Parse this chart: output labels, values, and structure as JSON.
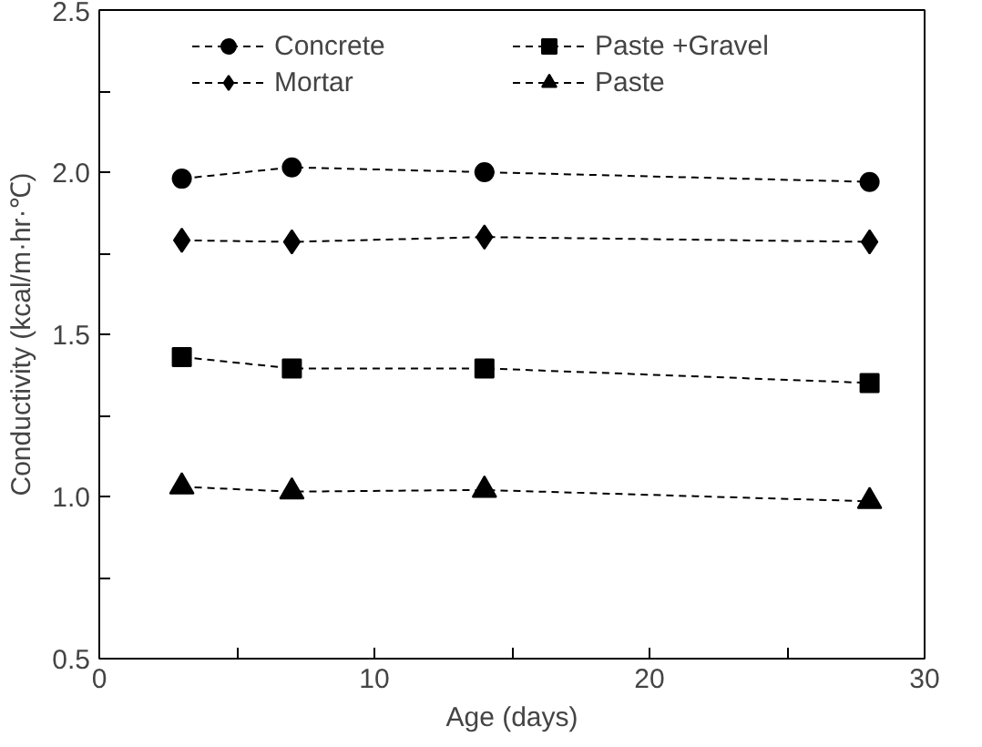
{
  "chart_data": {
    "type": "line",
    "xlabel": "Age (days)",
    "ylabel": "Conductivity (kcal/m·hr·℃)",
    "xlim": [
      0,
      30
    ],
    "ylim": [
      0.5,
      2.5
    ],
    "xticks": [
      0,
      {
        "value": 5,
        "label": null
      },
      10,
      {
        "value": 15,
        "label": null
      },
      20,
      {
        "value": 25,
        "label": null
      },
      30
    ],
    "yticks": [
      {
        "value": 0.5,
        "label": "0.5"
      },
      {
        "value": 0.75,
        "label": null
      },
      {
        "value": 1,
        "label": "1.0"
      },
      {
        "value": 1.25,
        "label": null
      },
      {
        "value": 1.5,
        "label": "1.5"
      },
      {
        "value": 1.75,
        "label": null
      },
      {
        "value": 2,
        "label": "2.0"
      },
      {
        "value": 2.25,
        "label": null
      },
      {
        "value": 2.5,
        "label": "2.5"
      }
    ],
    "x": [
      3,
      7,
      14,
      28
    ],
    "legend": "top",
    "grid": false,
    "line_style": "dashed",
    "series": [
      {
        "name": "Concrete",
        "color": "#000000",
        "marker": "circle",
        "values": [
          1.98,
          2.015,
          2.0,
          1.97
        ]
      },
      {
        "name": "Mortar",
        "color": "#000000",
        "marker": "diamond",
        "values": [
          1.79,
          1.785,
          1.8,
          1.785
        ]
      },
      {
        "name": "Paste +Gravel",
        "color": "#000000",
        "marker": "square",
        "values": [
          1.43,
          1.395,
          1.395,
          1.35
        ]
      },
      {
        "name": "Paste",
        "color": "#000000",
        "marker": "triangle",
        "values": [
          1.03,
          1.015,
          1.02,
          0.985
        ]
      }
    ]
  }
}
